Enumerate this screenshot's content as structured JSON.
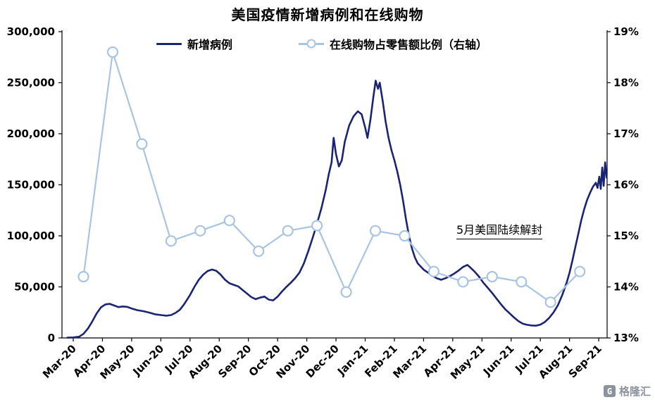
{
  "chart_data": {
    "type": "line",
    "title": "美国疫情新增病例和在线购物",
    "legend_position": "top",
    "grid": false,
    "x_tick_labels": [
      "Mar-20",
      "Apr-20",
      "May-20",
      "Jun-20",
      "Jul-20",
      "Aug-20",
      "Sep-20",
      "Oct-20",
      "Nov-20",
      "Dec-20",
      "Jan-21",
      "Feb-21",
      "Mar-21",
      "Apr-21",
      "May-21",
      "Jun-21",
      "Jul-21",
      "Aug-21",
      "Sep-21"
    ],
    "left_axis": {
      "min": 0,
      "max": 300000,
      "ticks": [
        0,
        50000,
        100000,
        150000,
        200000,
        250000,
        300000
      ],
      "labels": [
        "0",
        "50,000",
        "100,000",
        "150,000",
        "200,000",
        "250,000",
        "300,000"
      ]
    },
    "right_axis": {
      "min": 13,
      "max": 19,
      "ticks": [
        13,
        14,
        15,
        16,
        17,
        18,
        19
      ],
      "labels": [
        "13%",
        "14%",
        "15%",
        "16%",
        "17%",
        "18%",
        "19%"
      ]
    },
    "x_offset_months": 0.35,
    "annotation": {
      "text": "5月美国陆续解封"
    },
    "series": [
      {
        "name": "新增病例",
        "axis": "left",
        "style": "line",
        "color": "#1a2472",
        "points": [
          [
            -0.2,
            300
          ],
          [
            0,
            500
          ],
          [
            0.2,
            1200
          ],
          [
            0.35,
            4000
          ],
          [
            0.5,
            9000
          ],
          [
            0.65,
            16000
          ],
          [
            0.8,
            24000
          ],
          [
            0.95,
            30000
          ],
          [
            1.1,
            32800
          ],
          [
            1.25,
            33400
          ],
          [
            1.4,
            31800
          ],
          [
            1.55,
            30200
          ],
          [
            1.7,
            30800
          ],
          [
            1.85,
            30400
          ],
          [
            2.0,
            28800
          ],
          [
            2.2,
            27200
          ],
          [
            2.4,
            26200
          ],
          [
            2.6,
            24800
          ],
          [
            2.8,
            23200
          ],
          [
            3.0,
            22400
          ],
          [
            3.2,
            21800
          ],
          [
            3.35,
            22400
          ],
          [
            3.5,
            24500
          ],
          [
            3.65,
            27500
          ],
          [
            3.8,
            33000
          ],
          [
            4.0,
            42000
          ],
          [
            4.15,
            50000
          ],
          [
            4.3,
            57000
          ],
          [
            4.45,
            62000
          ],
          [
            4.6,
            65500
          ],
          [
            4.75,
            67000
          ],
          [
            4.9,
            65800
          ],
          [
            5.05,
            62000
          ],
          [
            5.2,
            57000
          ],
          [
            5.35,
            53500
          ],
          [
            5.5,
            52000
          ],
          [
            5.65,
            50500
          ],
          [
            5.8,
            47000
          ],
          [
            5.95,
            43500
          ],
          [
            6.1,
            40000
          ],
          [
            6.25,
            38000
          ],
          [
            6.4,
            39500
          ],
          [
            6.55,
            40500
          ],
          [
            6.7,
            37500
          ],
          [
            6.85,
            36800
          ],
          [
            7.0,
            40500
          ],
          [
            7.15,
            45500
          ],
          [
            7.3,
            50000
          ],
          [
            7.45,
            54000
          ],
          [
            7.6,
            58500
          ],
          [
            7.75,
            64000
          ],
          [
            7.9,
            73000
          ],
          [
            8.05,
            85000
          ],
          [
            8.2,
            98000
          ],
          [
            8.35,
            112000
          ],
          [
            8.5,
            127000
          ],
          [
            8.65,
            145000
          ],
          [
            8.75,
            160000
          ],
          [
            8.85,
            172000
          ],
          [
            8.92,
            196000
          ],
          [
            9.0,
            180000
          ],
          [
            9.1,
            168000
          ],
          [
            9.2,
            174000
          ],
          [
            9.3,
            192000
          ],
          [
            9.45,
            208000
          ],
          [
            9.6,
            217000
          ],
          [
            9.75,
            222000
          ],
          [
            9.88,
            219000
          ],
          [
            10.0,
            206000
          ],
          [
            10.08,
            196000
          ],
          [
            10.18,
            214000
          ],
          [
            10.28,
            236000
          ],
          [
            10.36,
            252000
          ],
          [
            10.44,
            244000
          ],
          [
            10.5,
            250000
          ],
          [
            10.6,
            232000
          ],
          [
            10.7,
            212000
          ],
          [
            10.8,
            196000
          ],
          [
            10.9,
            184000
          ],
          [
            11.0,
            174000
          ],
          [
            11.1,
            163000
          ],
          [
            11.2,
            150000
          ],
          [
            11.3,
            134000
          ],
          [
            11.4,
            116000
          ],
          [
            11.5,
            100000
          ],
          [
            11.6,
            88000
          ],
          [
            11.7,
            79000
          ],
          [
            11.8,
            73000
          ],
          [
            11.9,
            70000
          ],
          [
            12.0,
            67000
          ],
          [
            12.15,
            64000
          ],
          [
            12.3,
            61000
          ],
          [
            12.45,
            58500
          ],
          [
            12.6,
            57000
          ],
          [
            12.75,
            58500
          ],
          [
            12.9,
            60500
          ],
          [
            13.05,
            63000
          ],
          [
            13.2,
            66000
          ],
          [
            13.35,
            69500
          ],
          [
            13.5,
            71500
          ],
          [
            13.6,
            69000
          ],
          [
            13.75,
            65000
          ],
          [
            13.9,
            60000
          ],
          [
            14.05,
            54000
          ],
          [
            14.2,
            49000
          ],
          [
            14.35,
            44000
          ],
          [
            14.5,
            38500
          ],
          [
            14.65,
            33000
          ],
          [
            14.8,
            28000
          ],
          [
            14.95,
            24000
          ],
          [
            15.1,
            20000
          ],
          [
            15.25,
            16500
          ],
          [
            15.4,
            14000
          ],
          [
            15.55,
            12800
          ],
          [
            15.7,
            12200
          ],
          [
            15.85,
            12000
          ],
          [
            16.0,
            13000
          ],
          [
            16.15,
            15500
          ],
          [
            16.3,
            19500
          ],
          [
            16.45,
            25000
          ],
          [
            16.6,
            32000
          ],
          [
            16.75,
            42000
          ],
          [
            16.9,
            54000
          ],
          [
            17.0,
            64000
          ],
          [
            17.1,
            76000
          ],
          [
            17.2,
            89000
          ],
          [
            17.3,
            102000
          ],
          [
            17.4,
            115000
          ],
          [
            17.5,
            126000
          ],
          [
            17.6,
            135000
          ],
          [
            17.7,
            142000
          ],
          [
            17.8,
            148000
          ],
          [
            17.9,
            152000
          ],
          [
            17.96,
            147000
          ],
          [
            18.02,
            158000
          ],
          [
            18.07,
            146000
          ],
          [
            18.12,
            167000
          ],
          [
            18.17,
            149000
          ],
          [
            18.22,
            172000
          ],
          [
            18.27,
            157000
          ]
        ]
      },
      {
        "name": "在线购物占零售额比例（右轴）",
        "axis": "right",
        "style": "line+marker",
        "color": "#a8c4e2",
        "x": [
          0,
          1,
          2,
          3,
          4,
          5,
          6,
          7,
          8,
          9,
          10,
          11,
          12,
          13,
          14,
          15,
          16,
          17
        ],
        "x_months": [
          "Mar-20",
          "Apr-20",
          "May-20",
          "Jun-20",
          "Jul-20",
          "Aug-20",
          "Sep-20",
          "Oct-20",
          "Nov-20",
          "Dec-20",
          "Jan-21",
          "Feb-21",
          "Mar-21",
          "Apr-21",
          "May-21",
          "Jun-21",
          "Jul-21",
          "Aug-21"
        ],
        "values": [
          14.2,
          18.6,
          16.8,
          14.9,
          15.1,
          15.3,
          14.7,
          15.1,
          15.2,
          13.9,
          15.1,
          15.0,
          14.3,
          14.1,
          14.2,
          14.1,
          13.7,
          14.3
        ]
      }
    ]
  },
  "watermark": {
    "text": "格隆汇",
    "logo_glyph": "G"
  }
}
